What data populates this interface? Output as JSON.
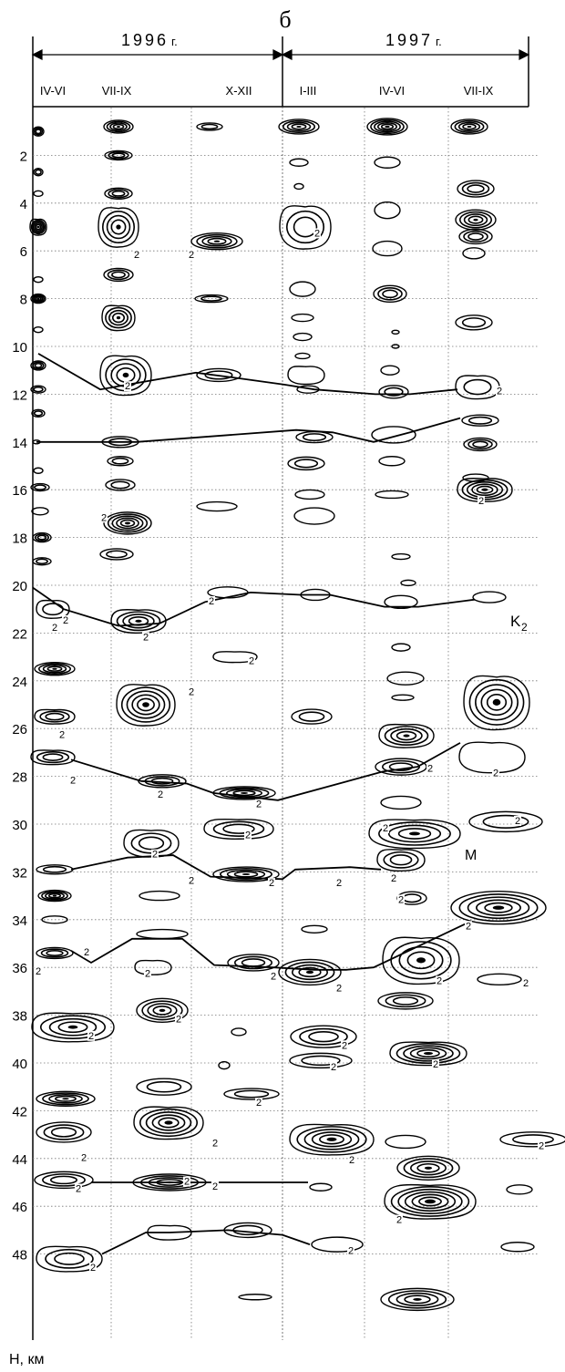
{
  "panel_label": "б",
  "years": [
    {
      "label": "1996",
      "suffix": "г."
    },
    {
      "label": "1997",
      "suffix": "г."
    }
  ],
  "periods": [
    "IV-VI",
    "VII-IX",
    "X-XII",
    "I-III",
    "IV-VI",
    "VII-IX"
  ],
  "depth_ticks": [
    "2",
    "4",
    "6",
    "8",
    "10",
    "12",
    "14",
    "16",
    "18",
    "20",
    "22",
    "24",
    "26",
    "28",
    "30",
    "32",
    "34",
    "36",
    "38",
    "40",
    "42",
    "44",
    "46",
    "48"
  ],
  "boundary_labels": {
    "k2_main": "K",
    "k2_sub": "2",
    "m": "M"
  },
  "contour_value": "2",
  "axis_title": "H, км",
  "colors": {
    "ink": "#000000",
    "grid": "#777777"
  }
}
